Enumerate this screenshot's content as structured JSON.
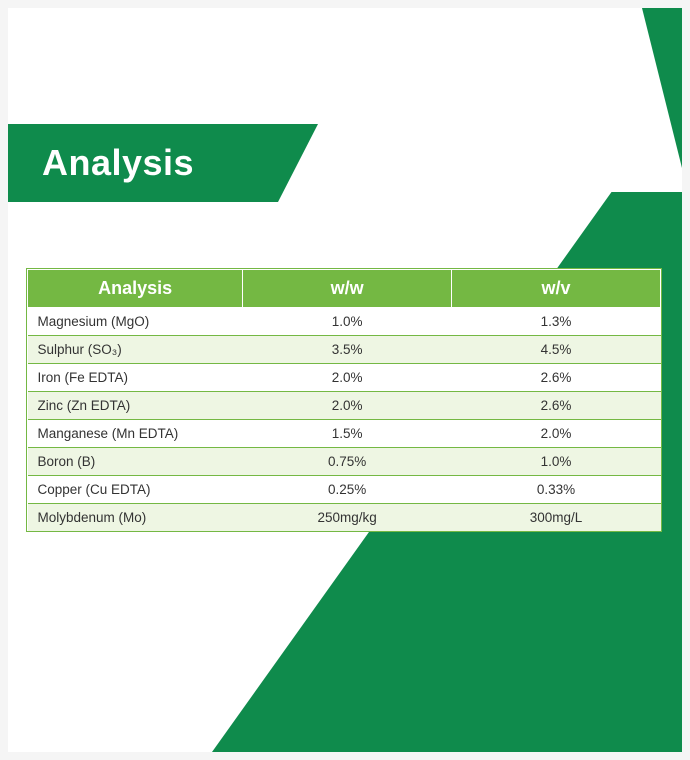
{
  "colors": {
    "brand": "#0f8b4c",
    "accent": "#74b843",
    "row_alt": "#eef6e3",
    "white": "#ffffff",
    "text": "#333333"
  },
  "header": {
    "title": "Analysis"
  },
  "table": {
    "type": "table",
    "columns": [
      "Analysis",
      "w/w",
      "w/v"
    ],
    "column_widths_pct": [
      34,
      33,
      33
    ],
    "header_bg": "#74b843",
    "header_text_color": "#ffffff",
    "border_color": "#74b843",
    "alt_row_bg": "#eef6e3",
    "rows": [
      {
        "label": "Magnesium (MgO)",
        "ww": "1.0%",
        "wv": "1.3%"
      },
      {
        "label": "Sulphur (SO₃)",
        "ww": "3.5%",
        "wv": "4.5%"
      },
      {
        "label": "Iron (Fe EDTA)",
        "ww": "2.0%",
        "wv": "2.6%"
      },
      {
        "label": "Zinc (Zn EDTA)",
        "ww": "2.0%",
        "wv": "2.6%"
      },
      {
        "label": "Manganese (Mn EDTA)",
        "ww": "1.5%",
        "wv": "2.0%"
      },
      {
        "label": "Boron (B)",
        "ww": "0.75%",
        "wv": "1.0%"
      },
      {
        "label": "Copper (Cu EDTA)",
        "ww": "0.25%",
        "wv": "0.33%"
      },
      {
        "label": "Molybdenum (Mo)",
        "ww": "250mg/kg",
        "wv": "300mg/L"
      }
    ]
  }
}
